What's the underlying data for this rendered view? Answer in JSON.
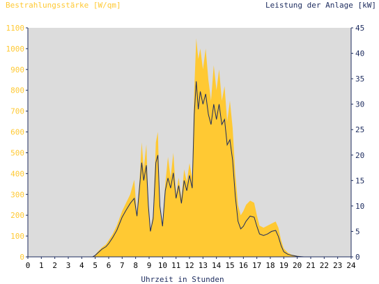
{
  "chart_data": {
    "type": "area",
    "title_left": "Bestrahlungsstärke [W/qm]",
    "title_right": "Leistung der Anlage [kW]",
    "xlabel": "Uhrzeit in Stunden",
    "xlim": [
      0,
      24
    ],
    "x_ticks": [
      "0",
      "1",
      "2",
      "3",
      "4",
      "5",
      "6",
      "7",
      "8",
      "9",
      "10",
      "11",
      "12",
      "13",
      "14",
      "15",
      "16",
      "17",
      "18",
      "19",
      "20",
      "21",
      "22",
      "23",
      "24"
    ],
    "y_left_lim": [
      0,
      1100
    ],
    "y_left_ticks": [
      "0",
      "100",
      "200",
      "300",
      "400",
      "500",
      "600",
      "700",
      "800",
      "900",
      "1000",
      "1100"
    ],
    "y_right_lim": [
      0,
      45
    ],
    "y_right_ticks": [
      "0",
      "5",
      "10",
      "15",
      "20",
      "25",
      "30",
      "35",
      "40",
      "45"
    ],
    "grid": false,
    "colors": {
      "plot_background": "#dcdcdc",
      "irradiance": "#ffc933",
      "power": "#1c2b5e",
      "left_axis_text": "#ffc933",
      "right_axis_text": "#1c2b5e",
      "axis": "#1c2b5e"
    },
    "series": [
      {
        "axis": "left",
        "style": "area",
        "x": [
          0,
          4.8,
          5.0,
          5.2,
          5.5,
          5.8,
          6.0,
          6.3,
          6.6,
          7.0,
          7.3,
          7.6,
          7.9,
          8.1,
          8.3,
          8.45,
          8.6,
          8.8,
          8.95,
          9.1,
          9.3,
          9.5,
          9.65,
          9.8,
          10.0,
          10.2,
          10.4,
          10.6,
          10.8,
          11.0,
          11.2,
          11.4,
          11.6,
          11.8,
          12.0,
          12.2,
          12.35,
          12.5,
          12.65,
          12.8,
          13.0,
          13.2,
          13.4,
          13.6,
          13.8,
          14.0,
          14.2,
          14.4,
          14.6,
          14.8,
          15.0,
          15.2,
          15.4,
          15.6,
          15.8,
          16.0,
          16.2,
          16.5,
          16.8,
          17.0,
          17.2,
          17.5,
          17.8,
          18.1,
          18.4,
          18.6,
          18.8,
          19.0,
          19.3,
          19.6,
          20.0,
          20.5,
          21.0,
          24
        ],
        "values": [
          0,
          0,
          10,
          25,
          45,
          60,
          80,
          110,
          150,
          220,
          260,
          300,
          370,
          200,
          380,
          550,
          420,
          540,
          250,
          130,
          200,
          550,
          600,
          250,
          150,
          350,
          480,
          380,
          500,
          300,
          380,
          280,
          420,
          360,
          450,
          380,
          800,
          1050,
          950,
          1000,
          900,
          1000,
          850,
          750,
          920,
          800,
          900,
          750,
          820,
          650,
          750,
          620,
          400,
          250,
          200,
          220,
          250,
          270,
          260,
          200,
          150,
          140,
          150,
          160,
          170,
          140,
          80,
          40,
          20,
          10,
          5,
          0,
          0,
          0
        ]
      },
      {
        "axis": "right",
        "style": "line",
        "x": [
          0,
          4.8,
          5.0,
          5.2,
          5.5,
          5.8,
          6.0,
          6.3,
          6.6,
          7.0,
          7.3,
          7.6,
          7.9,
          8.1,
          8.3,
          8.45,
          8.6,
          8.8,
          8.95,
          9.1,
          9.3,
          9.5,
          9.65,
          9.8,
          10.0,
          10.2,
          10.4,
          10.6,
          10.8,
          11.0,
          11.2,
          11.4,
          11.6,
          11.8,
          12.0,
          12.2,
          12.35,
          12.5,
          12.65,
          12.8,
          13.0,
          13.2,
          13.4,
          13.6,
          13.8,
          14.0,
          14.2,
          14.4,
          14.6,
          14.8,
          15.0,
          15.2,
          15.4,
          15.6,
          15.8,
          16.0,
          16.2,
          16.5,
          16.8,
          17.0,
          17.2,
          17.5,
          17.8,
          18.1,
          18.4,
          18.6,
          18.8,
          19.0,
          19.3,
          19.6,
          20.0,
          20.5,
          21.0,
          24
        ],
        "values": [
          0,
          0,
          0.3,
          0.8,
          1.5,
          2.0,
          2.6,
          3.8,
          5.2,
          7.8,
          9.2,
          10.5,
          11.5,
          8.0,
          14.0,
          18.5,
          15.0,
          18.0,
          10.0,
          5.0,
          7.5,
          18.5,
          20.0,
          10.0,
          6.0,
          13.0,
          15.5,
          13.5,
          16.5,
          11.5,
          14.0,
          10.5,
          15.0,
          13.0,
          16.0,
          13.5,
          28.0,
          34.5,
          29.0,
          32.5,
          30.0,
          32.0,
          28.0,
          26.0,
          30.0,
          27.0,
          30.0,
          26.0,
          27.0,
          22.0,
          23.0,
          19.0,
          12.0,
          7.0,
          5.5,
          6.0,
          7.0,
          8.0,
          7.8,
          6.0,
          4.5,
          4.2,
          4.5,
          5.0,
          5.2,
          4.0,
          2.2,
          1.0,
          0.5,
          0.3,
          0.1,
          0,
          0,
          0
        ]
      }
    ]
  }
}
